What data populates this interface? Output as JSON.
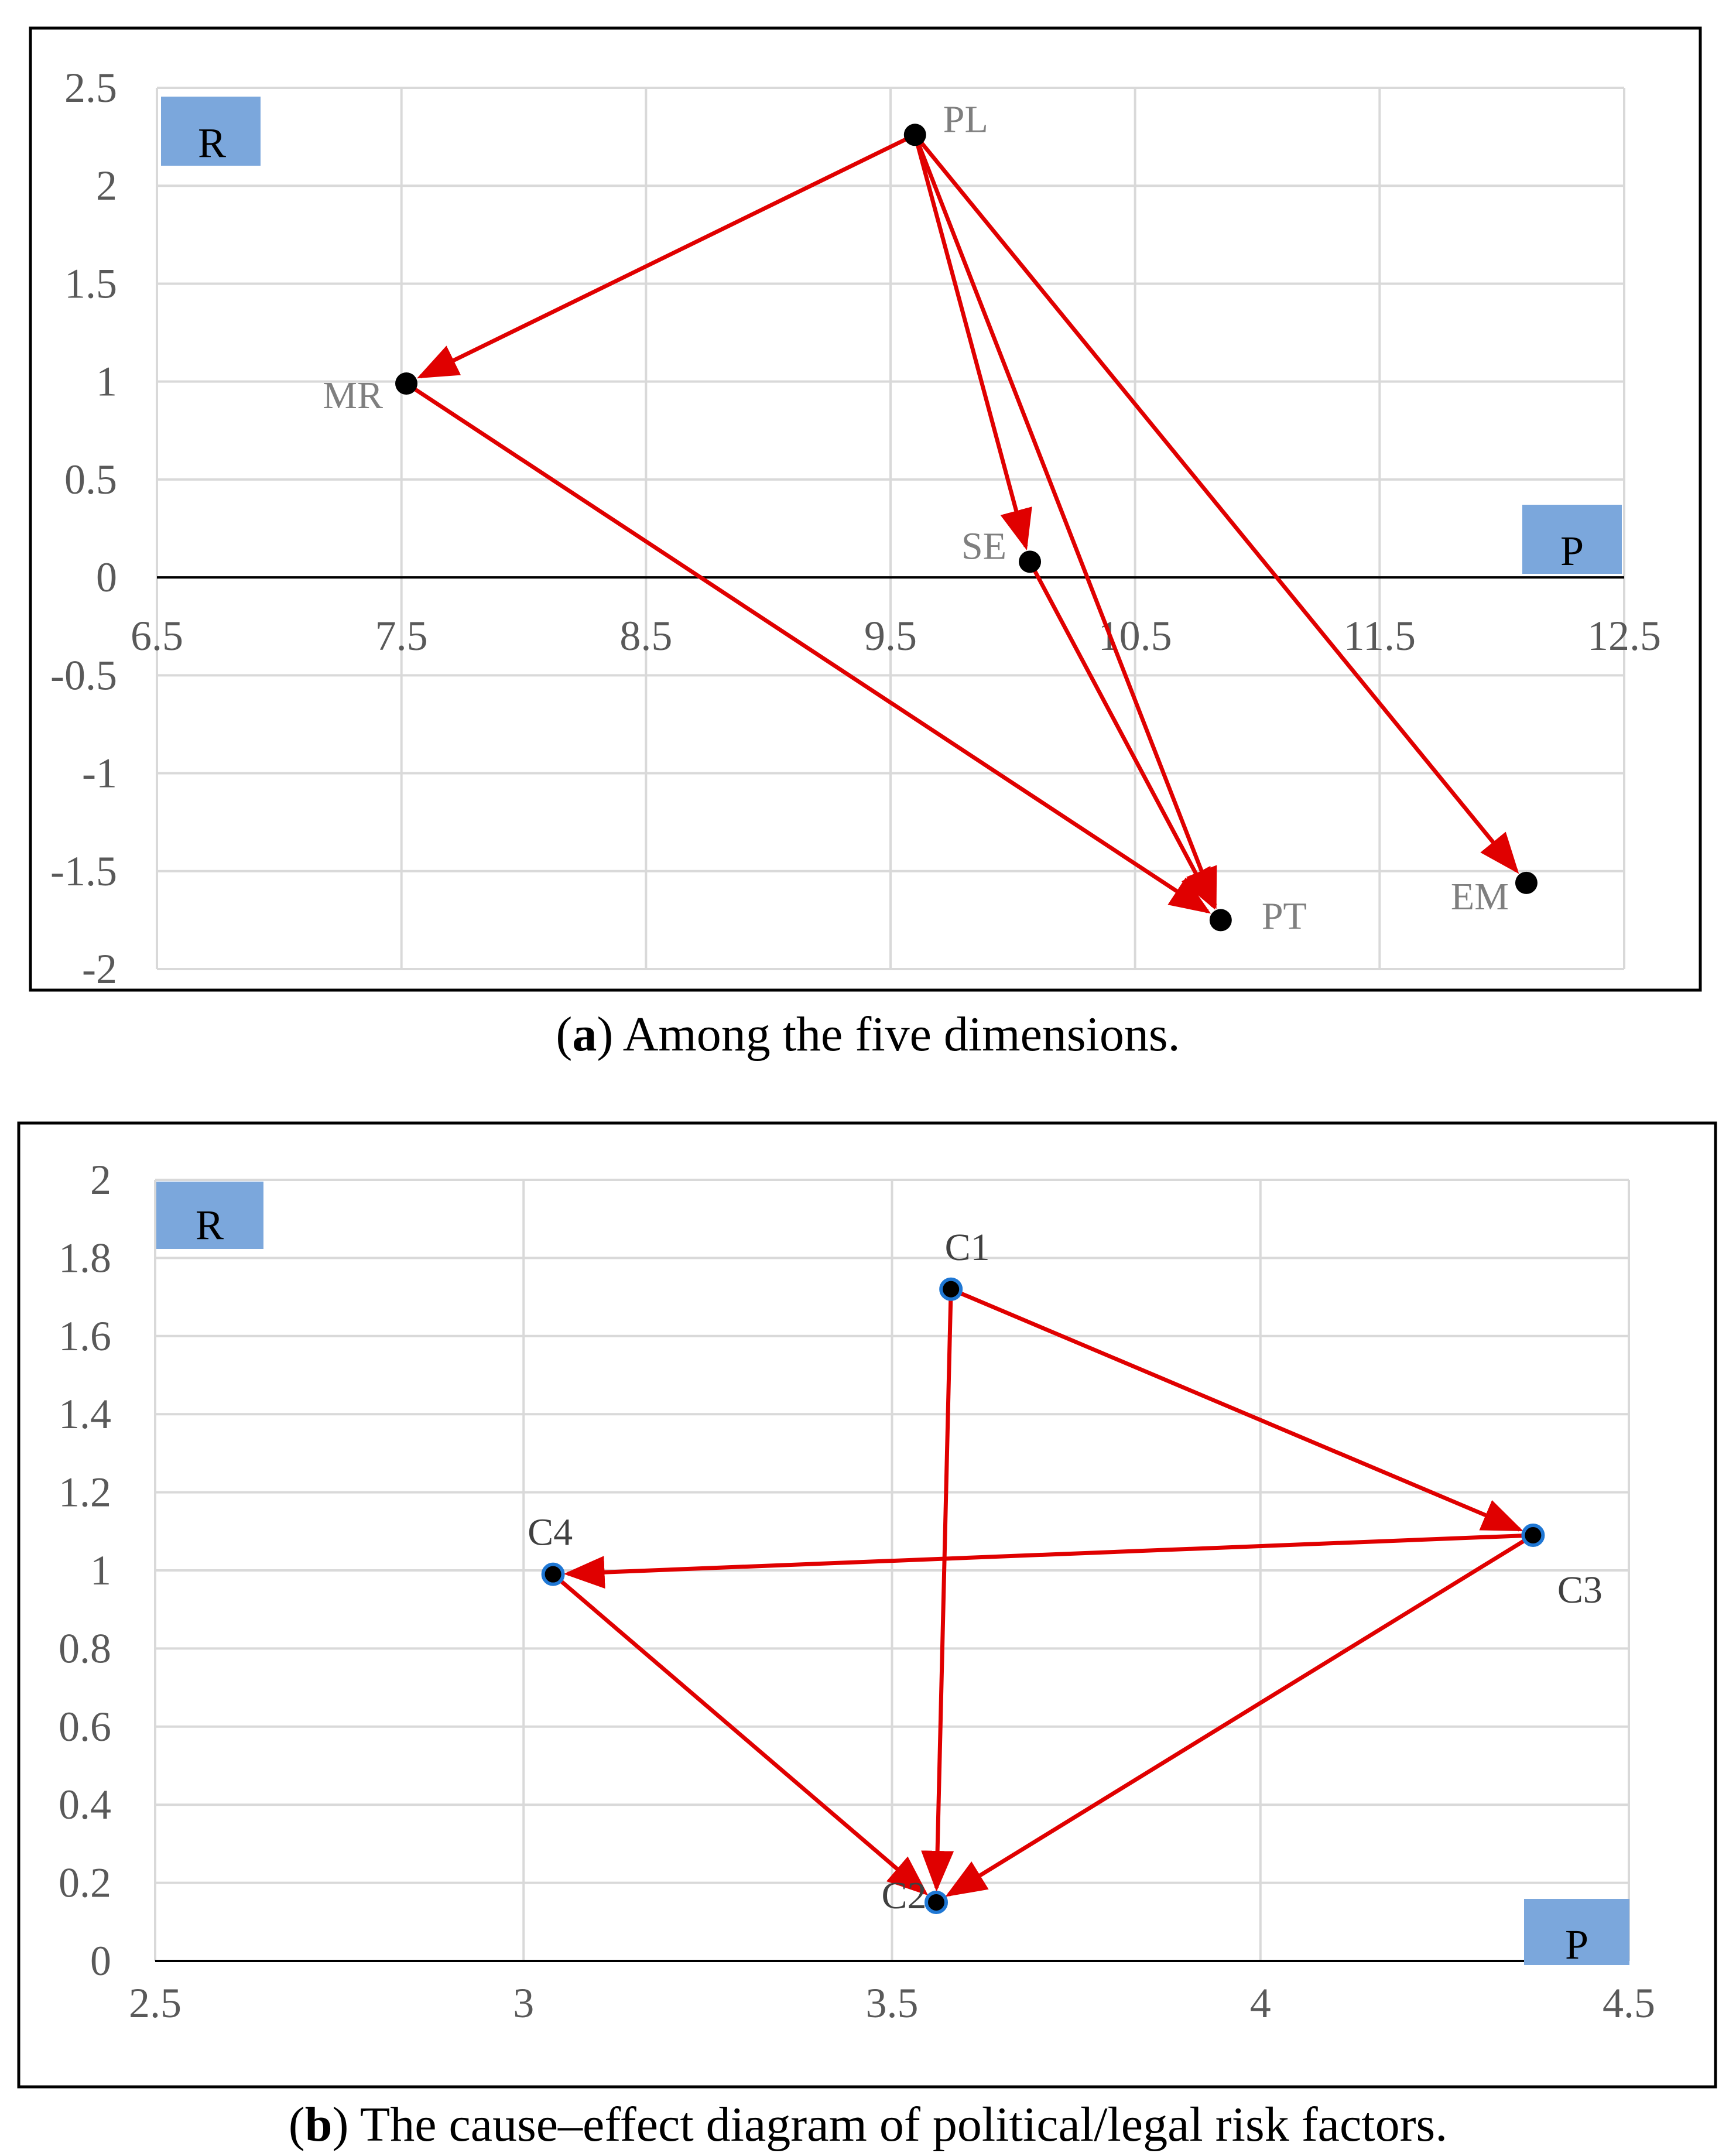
{
  "chart_data": [
    {
      "type": "scatter",
      "id": "a",
      "title": "",
      "xlabel": "",
      "ylabel": "",
      "xlim": [
        6.5,
        12.5
      ],
      "ylim": [
        -2,
        2.5
      ],
      "x_ticks": [
        "6.5",
        "7.5",
        "8.5",
        "9.5",
        "10.5",
        "11.5",
        "12.5"
      ],
      "y_ticks": [
        "2.5",
        "2",
        "1.5",
        "1",
        "0.5",
        "0",
        "-0.5",
        "-1",
        "-1.5",
        "-2"
      ],
      "x_tick_values": [
        6.5,
        7.5,
        8.5,
        9.5,
        10.5,
        11.5,
        12.5
      ],
      "y_tick_values": [
        2.5,
        2,
        1.5,
        1,
        0.5,
        0,
        -0.5,
        -1,
        -1.5,
        -2
      ],
      "quadrant_labels": {
        "r": "R",
        "p": "P"
      },
      "grid": true,
      "points": [
        {
          "label": "PL",
          "x": 9.6,
          "y": 2.26
        },
        {
          "label": "MR",
          "x": 7.52,
          "y": 0.99
        },
        {
          "label": "SE",
          "x": 10.07,
          "y": 0.08
        },
        {
          "label": "PT",
          "x": 10.85,
          "y": -1.75
        },
        {
          "label": "EM",
          "x": 12.1,
          "y": -1.56
        }
      ],
      "arrows": [
        {
          "from": "PL",
          "to": "MR"
        },
        {
          "from": "PL",
          "to": "SE"
        },
        {
          "from": "PL",
          "to": "PT"
        },
        {
          "from": "PL",
          "to": "EM"
        },
        {
          "from": "MR",
          "to": "PT"
        },
        {
          "from": "SE",
          "to": "PT"
        }
      ],
      "caption_letter": "a",
      "caption_text": "Among the five dimensions."
    },
    {
      "type": "scatter",
      "id": "b",
      "title": "",
      "xlabel": "",
      "ylabel": "",
      "xlim": [
        2.5,
        4.5
      ],
      "ylim": [
        0,
        2
      ],
      "x_ticks": [
        "2.5",
        "3",
        "3.5",
        "4",
        "4.5"
      ],
      "y_ticks": [
        "2",
        "1.8",
        "1.6",
        "1.4",
        "1.2",
        "1",
        "0.8",
        "0.6",
        "0.4",
        "0.2",
        "0"
      ],
      "x_tick_values": [
        2.5,
        3,
        3.5,
        4,
        4.5
      ],
      "y_tick_values": [
        2,
        1.8,
        1.6,
        1.4,
        1.2,
        1,
        0.8,
        0.6,
        0.4,
        0.2,
        0
      ],
      "quadrant_labels": {
        "r": "R",
        "p": "P"
      },
      "grid": true,
      "points": [
        {
          "label": "C1",
          "x": 3.58,
          "y": 1.72
        },
        {
          "label": "C2",
          "x": 3.56,
          "y": 0.15
        },
        {
          "label": "C3",
          "x": 4.37,
          "y": 1.09
        },
        {
          "label": "C4",
          "x": 3.04,
          "y": 0.99
        }
      ],
      "arrows": [
        {
          "from": "C1",
          "to": "C2"
        },
        {
          "from": "C1",
          "to": "C3"
        },
        {
          "from": "C3",
          "to": "C4"
        },
        {
          "from": "C3",
          "to": "C2"
        },
        {
          "from": "C4",
          "to": "C2"
        }
      ],
      "caption_letter": "b",
      "caption_text": "The cause–effect diagram of political/legal risk factors."
    }
  ]
}
